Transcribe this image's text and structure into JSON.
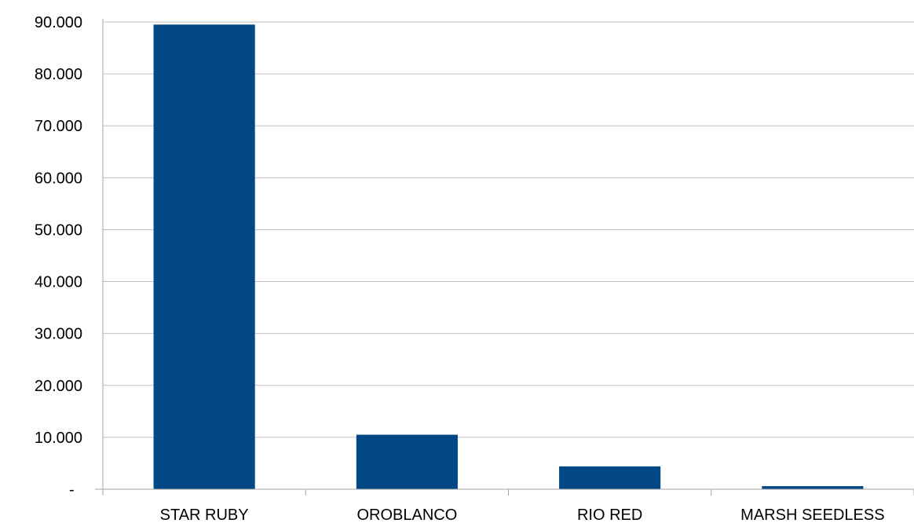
{
  "chart_data": {
    "type": "bar",
    "categories": [
      "STAR RUBY",
      "OROBLANCO",
      "RIO RED",
      "MARSH SEEDLESS"
    ],
    "values": [
      89500,
      10500,
      4400,
      600
    ],
    "ylim": [
      0,
      90000
    ],
    "y_ticks": [
      0,
      10000,
      20000,
      30000,
      40000,
      50000,
      60000,
      70000,
      80000,
      90000
    ],
    "y_tick_labels": [
      "-",
      "10.000",
      "20.000",
      "30.000",
      "40.000",
      "50.000",
      "60.000",
      "70.000",
      "80.000",
      "90.000"
    ],
    "grid": true,
    "legend": "none",
    "colors": {
      "bar": "#024887",
      "gridline": "#c0c0c0",
      "axis": "#a6a6a6"
    }
  }
}
